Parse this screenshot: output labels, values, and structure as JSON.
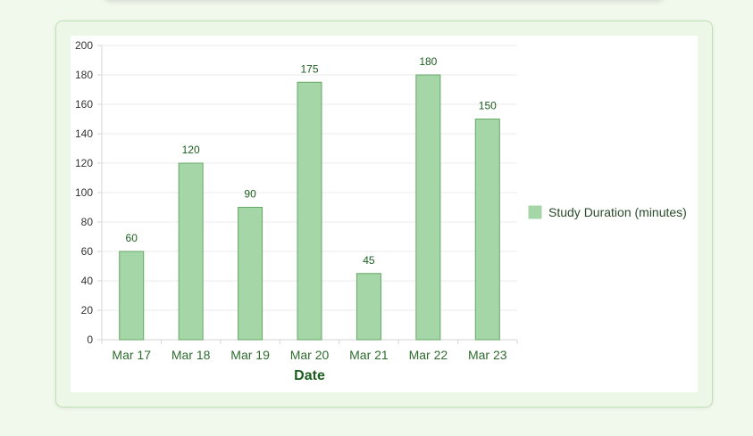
{
  "chart_data": {
    "type": "bar",
    "categories": [
      "Mar 17",
      "Mar 18",
      "Mar 19",
      "Mar 20",
      "Mar 21",
      "Mar 22",
      "Mar 23"
    ],
    "series": [
      {
        "name": "Study Duration (minutes)",
        "values": [
          60,
          120,
          90,
          175,
          45,
          180,
          150
        ],
        "color": "#a5d6a7",
        "border_color": "#66a866"
      }
    ],
    "title": "",
    "xlabel": "Date",
    "ylabel": "",
    "ylim": [
      0,
      200
    ],
    "y_ticks": [
      0,
      20,
      40,
      60,
      80,
      100,
      120,
      140,
      160,
      180,
      200
    ],
    "grid": true,
    "legend_position": "right",
    "data_labels": true,
    "label_color": "#1b5e20",
    "tick_label_color": "#2e6b2e"
  }
}
